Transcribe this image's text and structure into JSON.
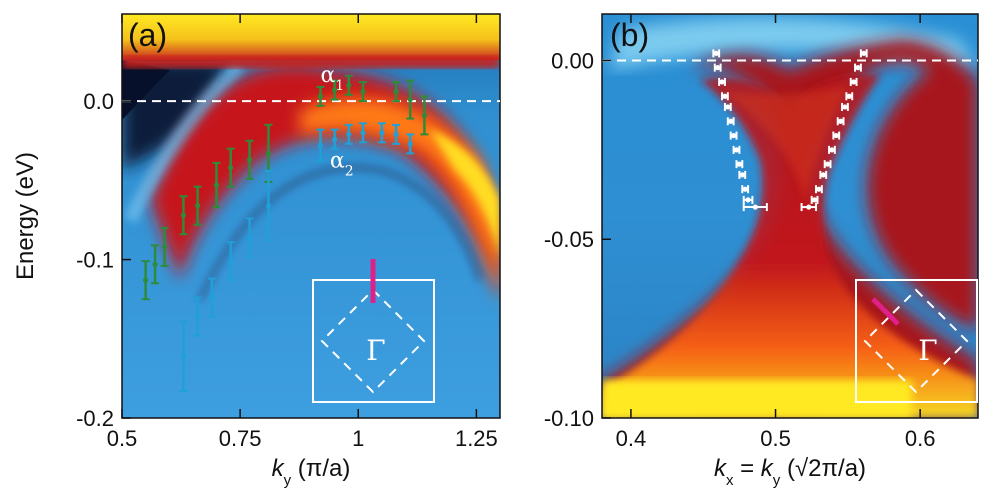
{
  "chart_data": [
    {
      "type": "heatmap",
      "panel_label": "(a)",
      "xlabel": "k_y (π/a)",
      "xlabel_var": "k",
      "xlabel_sub": "y",
      "xlabel_unit": " (π/a)",
      "ylabel": "Energy (eV)",
      "xlim": [
        0.5,
        1.3
      ],
      "ylim": [
        -0.2,
        0.055
      ],
      "x_ticks": [
        {
          "v": 0.5,
          "label": "0.5"
        },
        {
          "v": 0.75,
          "label": "0.75"
        },
        {
          "v": 1.0,
          "label": "1"
        },
        {
          "v": 1.25,
          "label": "1.25"
        }
      ],
      "y_ticks": [
        {
          "v": 0.0,
          "label": "0.0"
        },
        {
          "v": -0.1,
          "label": "-0.1"
        },
        {
          "v": -0.2,
          "label": "-0.2"
        }
      ],
      "fermi_level": 0.0,
      "annotations": [
        {
          "text": "α",
          "sub": "1",
          "x": 0.92,
          "y": 0.012
        },
        {
          "text": "α",
          "sub": "2",
          "x": 0.94,
          "y": -0.042
        }
      ],
      "series": [
        {
          "name": "α1",
          "color": "#2e8b3a",
          "points": [
            {
              "x": 0.55,
              "y": -0.113,
              "err": 0.012
            },
            {
              "x": 0.57,
              "y": -0.103,
              "err": 0.012
            },
            {
              "x": 0.59,
              "y": -0.092,
              "err": 0.012
            },
            {
              "x": 0.63,
              "y": -0.072,
              "err": 0.012
            },
            {
              "x": 0.66,
              "y": -0.066,
              "err": 0.012
            },
            {
              "x": 0.7,
              "y": -0.053,
              "err": 0.014
            },
            {
              "x": 0.73,
              "y": -0.042,
              "err": 0.012
            },
            {
              "x": 0.77,
              "y": -0.037,
              "err": 0.012
            },
            {
              "x": 0.81,
              "y": -0.033,
              "err": 0.018
            },
            {
              "x": 0.92,
              "y": 0.003,
              "err": 0.006
            },
            {
              "x": 0.95,
              "y": 0.007,
              "err": 0.006
            },
            {
              "x": 0.98,
              "y": 0.01,
              "err": 0.006
            },
            {
              "x": 1.01,
              "y": 0.006,
              "err": 0.006
            },
            {
              "x": 1.08,
              "y": 0.006,
              "err": 0.006
            },
            {
              "x": 1.11,
              "y": 0.001,
              "err": 0.012
            },
            {
              "x": 1.14,
              "y": -0.009,
              "err": 0.012
            }
          ]
        },
        {
          "name": "α2",
          "color": "#1fa0d8",
          "points": [
            {
              "x": 0.63,
              "y": -0.161,
              "err": 0.022
            },
            {
              "x": 0.66,
              "y": -0.136,
              "err": 0.012
            },
            {
              "x": 0.69,
              "y": -0.124,
              "err": 0.012
            },
            {
              "x": 0.73,
              "y": -0.101,
              "err": 0.012
            },
            {
              "x": 0.77,
              "y": -0.086,
              "err": 0.012
            },
            {
              "x": 0.81,
              "y": -0.066,
              "err": 0.022
            },
            {
              "x": 0.92,
              "y": -0.028,
              "err": 0.01
            },
            {
              "x": 0.95,
              "y": -0.024,
              "err": 0.006
            },
            {
              "x": 0.98,
              "y": -0.021,
              "err": 0.006
            },
            {
              "x": 1.01,
              "y": -0.02,
              "err": 0.006
            },
            {
              "x": 1.05,
              "y": -0.02,
              "err": 0.006
            },
            {
              "x": 1.08,
              "y": -0.021,
              "err": 0.006
            },
            {
              "x": 1.11,
              "y": -0.027,
              "err": 0.006
            }
          ]
        }
      ],
      "inset": {
        "symbol": "Γ",
        "cut_color": "#e0208a",
        "cut": "vertical"
      }
    },
    {
      "type": "heatmap",
      "panel_label": "(b)",
      "xlabel": "k_x = k_y (√2π/a)",
      "xlabel_parts": [
        "k",
        "x",
        " = ",
        "k",
        "y",
        " (√2π/a)"
      ],
      "xlim": [
        0.38,
        0.64
      ],
      "ylim": [
        -0.1,
        0.013
      ],
      "x_ticks": [
        {
          "v": 0.4,
          "label": "0.4"
        },
        {
          "v": 0.5,
          "label": "0.5"
        },
        {
          "v": 0.6,
          "label": "0.6"
        }
      ],
      "y_ticks": [
        {
          "v": 0.0,
          "label": "0.00"
        },
        {
          "v": -0.05,
          "label": "-0.05"
        },
        {
          "v": -0.1,
          "label": "-0.10"
        }
      ],
      "fermi_level": 0.0,
      "series": [
        {
          "name": "left branch",
          "color": "#ffffff",
          "points": [
            {
              "x": 0.459,
              "y": 0.002,
              "xerr": 0.002
            },
            {
              "x": 0.46,
              "y": -0.002,
              "xerr": 0.002
            },
            {
              "x": 0.463,
              "y": -0.006,
              "xerr": 0.002
            },
            {
              "x": 0.465,
              "y": -0.01,
              "xerr": 0.002
            },
            {
              "x": 0.467,
              "y": -0.013,
              "xerr": 0.002
            },
            {
              "x": 0.469,
              "y": -0.017,
              "xerr": 0.002
            },
            {
              "x": 0.471,
              "y": -0.021,
              "xerr": 0.002
            },
            {
              "x": 0.473,
              "y": -0.025,
              "xerr": 0.002
            },
            {
              "x": 0.475,
              "y": -0.029,
              "xerr": 0.002
            },
            {
              "x": 0.477,
              "y": -0.032,
              "xerr": 0.002
            },
            {
              "x": 0.479,
              "y": -0.036,
              "xerr": 0.002
            },
            {
              "x": 0.481,
              "y": -0.039,
              "xerr": 0.003
            },
            {
              "x": 0.486,
              "y": -0.041,
              "xerr": 0.008
            }
          ]
        },
        {
          "name": "right branch",
          "color": "#ffffff",
          "points": [
            {
              "x": 0.561,
              "y": 0.002,
              "xerr": 0.002
            },
            {
              "x": 0.557,
              "y": -0.002,
              "xerr": 0.002
            },
            {
              "x": 0.554,
              "y": -0.006,
              "xerr": 0.002
            },
            {
              "x": 0.551,
              "y": -0.01,
              "xerr": 0.002
            },
            {
              "x": 0.548,
              "y": -0.013,
              "xerr": 0.002
            },
            {
              "x": 0.545,
              "y": -0.017,
              "xerr": 0.002
            },
            {
              "x": 0.542,
              "y": -0.021,
              "xerr": 0.002
            },
            {
              "x": 0.539,
              "y": -0.025,
              "xerr": 0.002
            },
            {
              "x": 0.536,
              "y": -0.029,
              "xerr": 0.002
            },
            {
              "x": 0.533,
              "y": -0.032,
              "xerr": 0.002
            },
            {
              "x": 0.53,
              "y": -0.036,
              "xerr": 0.002
            },
            {
              "x": 0.527,
              "y": -0.039,
              "xerr": 0.002
            },
            {
              "x": 0.523,
              "y": -0.041,
              "xerr": 0.005
            }
          ]
        }
      ],
      "inset": {
        "symbol": "Γ",
        "cut_color": "#e0208a",
        "cut": "diagonal"
      }
    }
  ]
}
